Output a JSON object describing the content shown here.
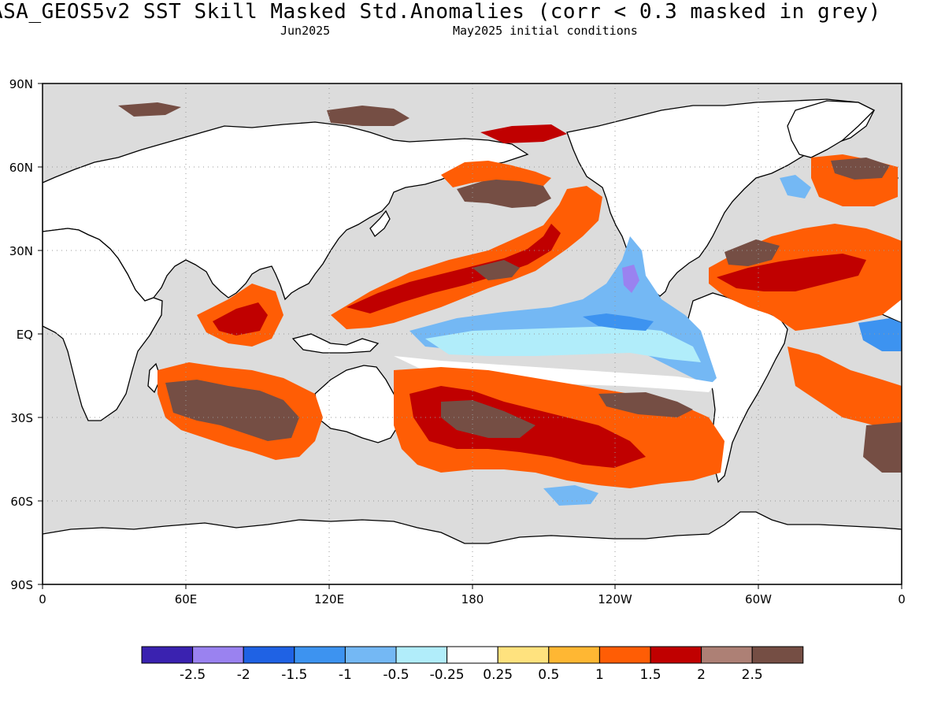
{
  "header": {
    "title": "ASA_GEOS5v2  SST Skill Masked Std.Anomalies (corr < 0.3 masked in grey)",
    "target_month": "Jun2025",
    "init_conditions": "May2025 initial conditions"
  },
  "axes": {
    "lat_labels": [
      "90N",
      "60N",
      "30N",
      "EQ",
      "30S",
      "60S",
      "90S"
    ],
    "lon_labels": [
      "0",
      "60E",
      "120E",
      "180",
      "120W",
      "60W",
      "0"
    ]
  },
  "colorbar": {
    "colors": [
      "#3a22b0",
      "#9a82f0",
      "#1f62e4",
      "#3d93f0",
      "#74b8f4",
      "#b1edfa",
      "#ffffff",
      "#ffe27e",
      "#ffb733",
      "#ff5d05",
      "#c00000",
      "#ad8075",
      "#754e44"
    ],
    "labels": [
      "-2.5",
      "-2",
      "-1.5",
      "-1",
      "-0.5",
      "-0.25",
      "0.25",
      "0.5",
      "1",
      "1.5",
      "2",
      "2.5"
    ]
  },
  "colors": {
    "mask_grey": "#dcdcdc",
    "land_white": "#ffffff"
  }
}
